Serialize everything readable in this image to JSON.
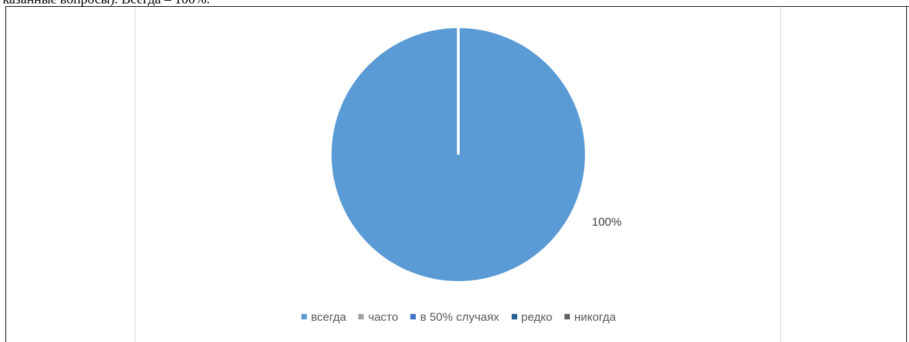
{
  "page": {
    "top_text": "казанные вопросы). Всегда – 100%."
  },
  "chart_data": {
    "type": "pie",
    "title": "",
    "categories": [
      "всегда",
      "часто",
      "в 50% случаях",
      "редко",
      "никогда"
    ],
    "values": [
      100,
      0,
      0,
      0,
      0
    ],
    "data_labels": [
      "100%"
    ],
    "colors": [
      "#5b9bd5",
      "#a5a5a5",
      "#4472c4",
      "#255e91",
      "#636363"
    ],
    "legend_position": "bottom"
  }
}
